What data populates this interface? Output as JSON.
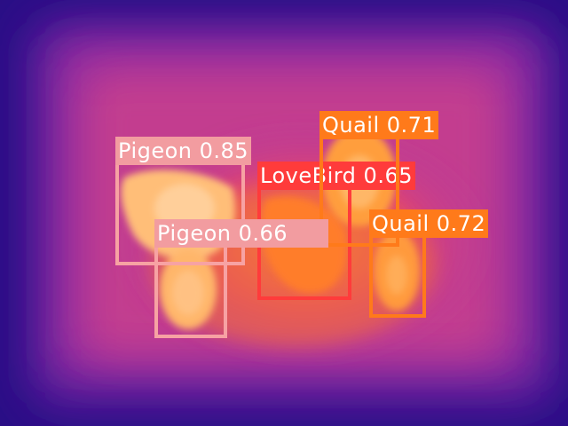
{
  "image": {
    "type": "thermal-camera-frame",
    "palette": "ironbow",
    "colors": {
      "cold": "#1f0b7a",
      "cool": "#5a1d9a",
      "mid": "#b43a9e",
      "warm": "#e8556a",
      "hot": "#f2902c",
      "hottest": "#ffd29a"
    }
  },
  "detections": [
    {
      "label": "Pigeon 0.85",
      "box_color": "#f7a2a3",
      "label_color": "#f29ca0"
    },
    {
      "label": "Pigeon 0.66",
      "box_color": "#f7a2a3",
      "label_color": "#f29ca0"
    },
    {
      "label": "LoveBird 0.65",
      "box_color": "#ff3b3b",
      "label_color": "#ff3b3b"
    },
    {
      "label": "Quail 0.71",
      "box_color": "#ff7a1a",
      "label_color": "#ff7a1a"
    },
    {
      "label": "Quail 0.72",
      "box_color": "#ff7a1a",
      "label_color": "#ff7a1a"
    }
  ]
}
